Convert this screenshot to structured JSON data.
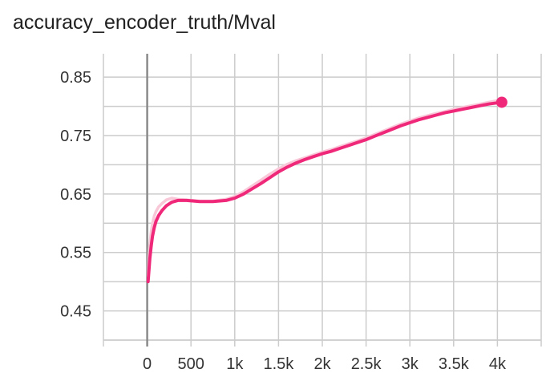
{
  "chart_data": {
    "type": "line",
    "title": "accuracy_encoder_truth/Mval",
    "xlabel": "",
    "ylabel": "",
    "xlim": [
      -500,
      4500
    ],
    "ylim": [
      0.4,
      0.89
    ],
    "x_ticks": [
      0,
      500,
      1000,
      1500,
      2000,
      2500,
      3000,
      3500,
      4000
    ],
    "x_tick_labels": [
      "0",
      "500",
      "1k",
      "1.5k",
      "2k",
      "2.5k",
      "3k",
      "3.5k",
      "4k"
    ],
    "y_ticks": [
      0.45,
      0.55,
      0.65,
      0.75,
      0.85
    ],
    "y_tick_labels": [
      "0.45",
      "0.55",
      "0.65",
      "0.75",
      "0.85"
    ],
    "x_gridlines": [
      -500,
      0,
      500,
      1000,
      1500,
      2000,
      2500,
      3000,
      3500,
      4000,
      4500
    ],
    "y_gridlines": [
      0.4,
      0.45,
      0.5,
      0.55,
      0.6,
      0.65,
      0.7,
      0.75,
      0.8,
      0.85
    ],
    "grid": true,
    "legend": "none",
    "series": [
      {
        "role": "raw",
        "color": "#f8c8d8",
        "x": [
          10,
          20,
          30,
          45,
          60,
          80,
          100,
          130,
          170,
          220,
          280,
          350,
          450,
          600,
          750,
          900,
          1000,
          1100,
          1200,
          1300,
          1400,
          1500,
          1600,
          1700,
          1800,
          1900,
          2000,
          2100,
          2200,
          2300,
          2400,
          2500,
          2600,
          2700,
          2800,
          2900,
          3000,
          3100,
          3200,
          3300,
          3400,
          3500,
          3600,
          3700,
          3800,
          3900,
          4000
        ],
        "y": [
          0.51,
          0.545,
          0.565,
          0.585,
          0.6,
          0.612,
          0.62,
          0.628,
          0.634,
          0.64,
          0.643,
          0.641,
          0.64,
          0.638,
          0.638,
          0.641,
          0.646,
          0.654,
          0.664,
          0.674,
          0.684,
          0.693,
          0.701,
          0.707,
          0.712,
          0.717,
          0.722,
          0.726,
          0.731,
          0.736,
          0.741,
          0.746,
          0.752,
          0.758,
          0.764,
          0.77,
          0.775,
          0.78,
          0.784,
          0.788,
          0.791,
          0.795,
          0.798,
          0.801,
          0.804,
          0.807,
          0.81
        ]
      },
      {
        "role": "smoothed",
        "color": "#f0287a",
        "x": [
          10,
          20,
          30,
          45,
          60,
          80,
          100,
          130,
          170,
          220,
          280,
          350,
          450,
          600,
          750,
          900,
          1000,
          1100,
          1200,
          1300,
          1400,
          1500,
          1600,
          1700,
          1800,
          1900,
          2000,
          2100,
          2200,
          2300,
          2400,
          2500,
          2600,
          2700,
          2800,
          2900,
          3000,
          3100,
          3200,
          3300,
          3400,
          3500,
          3600,
          3700,
          3800,
          3900,
          4000,
          4050
        ],
        "y": [
          0.5,
          0.52,
          0.54,
          0.56,
          0.578,
          0.592,
          0.603,
          0.613,
          0.622,
          0.63,
          0.636,
          0.639,
          0.639,
          0.637,
          0.637,
          0.639,
          0.643,
          0.65,
          0.659,
          0.668,
          0.678,
          0.688,
          0.696,
          0.703,
          0.709,
          0.714,
          0.719,
          0.723,
          0.728,
          0.733,
          0.738,
          0.743,
          0.749,
          0.755,
          0.761,
          0.767,
          0.772,
          0.777,
          0.781,
          0.785,
          0.789,
          0.792,
          0.795,
          0.798,
          0.801,
          0.804,
          0.806,
          0.807
        ]
      }
    ],
    "end_marker": {
      "x": 4050,
      "y": 0.807,
      "color": "#f0287a"
    }
  }
}
